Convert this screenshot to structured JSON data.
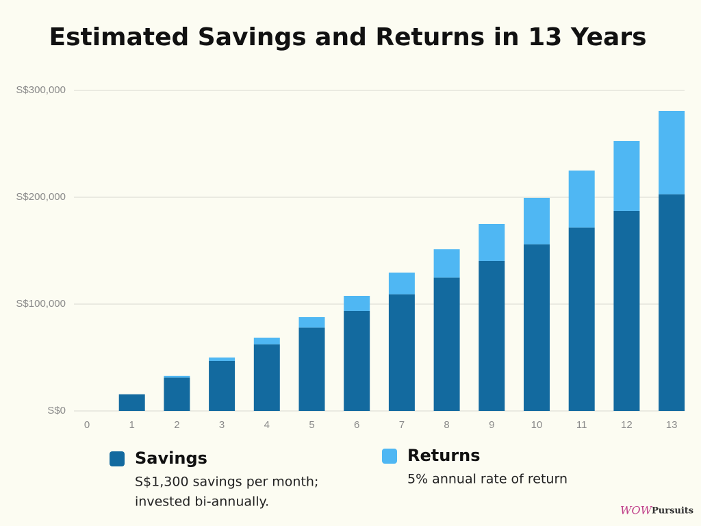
{
  "chart_data": {
    "type": "stacked-bar",
    "title": "Estimated Savings and Returns in 13 Years",
    "categories": [
      0,
      1,
      2,
      3,
      4,
      5,
      6,
      7,
      8,
      9,
      10,
      11,
      12,
      13
    ],
    "series": [
      {
        "name": "Savings",
        "color": "#136a9f",
        "description": [
          "S$1,300 savings per month;",
          "invested bi-annually."
        ],
        "values": [
          0,
          15600,
          31200,
          46800,
          62400,
          78000,
          93600,
          109200,
          124800,
          140400,
          156000,
          171600,
          187200,
          202800
        ]
      },
      {
        "name": "Returns",
        "color": "#4fb7f3",
        "description": [
          "5% annual rate of return"
        ],
        "values": [
          0,
          0,
          1600,
          3200,
          6200,
          9800,
          14100,
          20300,
          26500,
          34600,
          43400,
          53400,
          65400,
          78000
        ]
      }
    ],
    "ylim": [
      0,
      300000
    ],
    "yticks": [
      {
        "value": 0,
        "label": "S$0"
      },
      {
        "value": 100000,
        "label": "S$100,000"
      },
      {
        "value": 200000,
        "label": "S$200,000"
      },
      {
        "value": 300000,
        "label": "S$300,000"
      }
    ],
    "grid": true,
    "brand": [
      "WOW",
      "Pursuits"
    ]
  }
}
